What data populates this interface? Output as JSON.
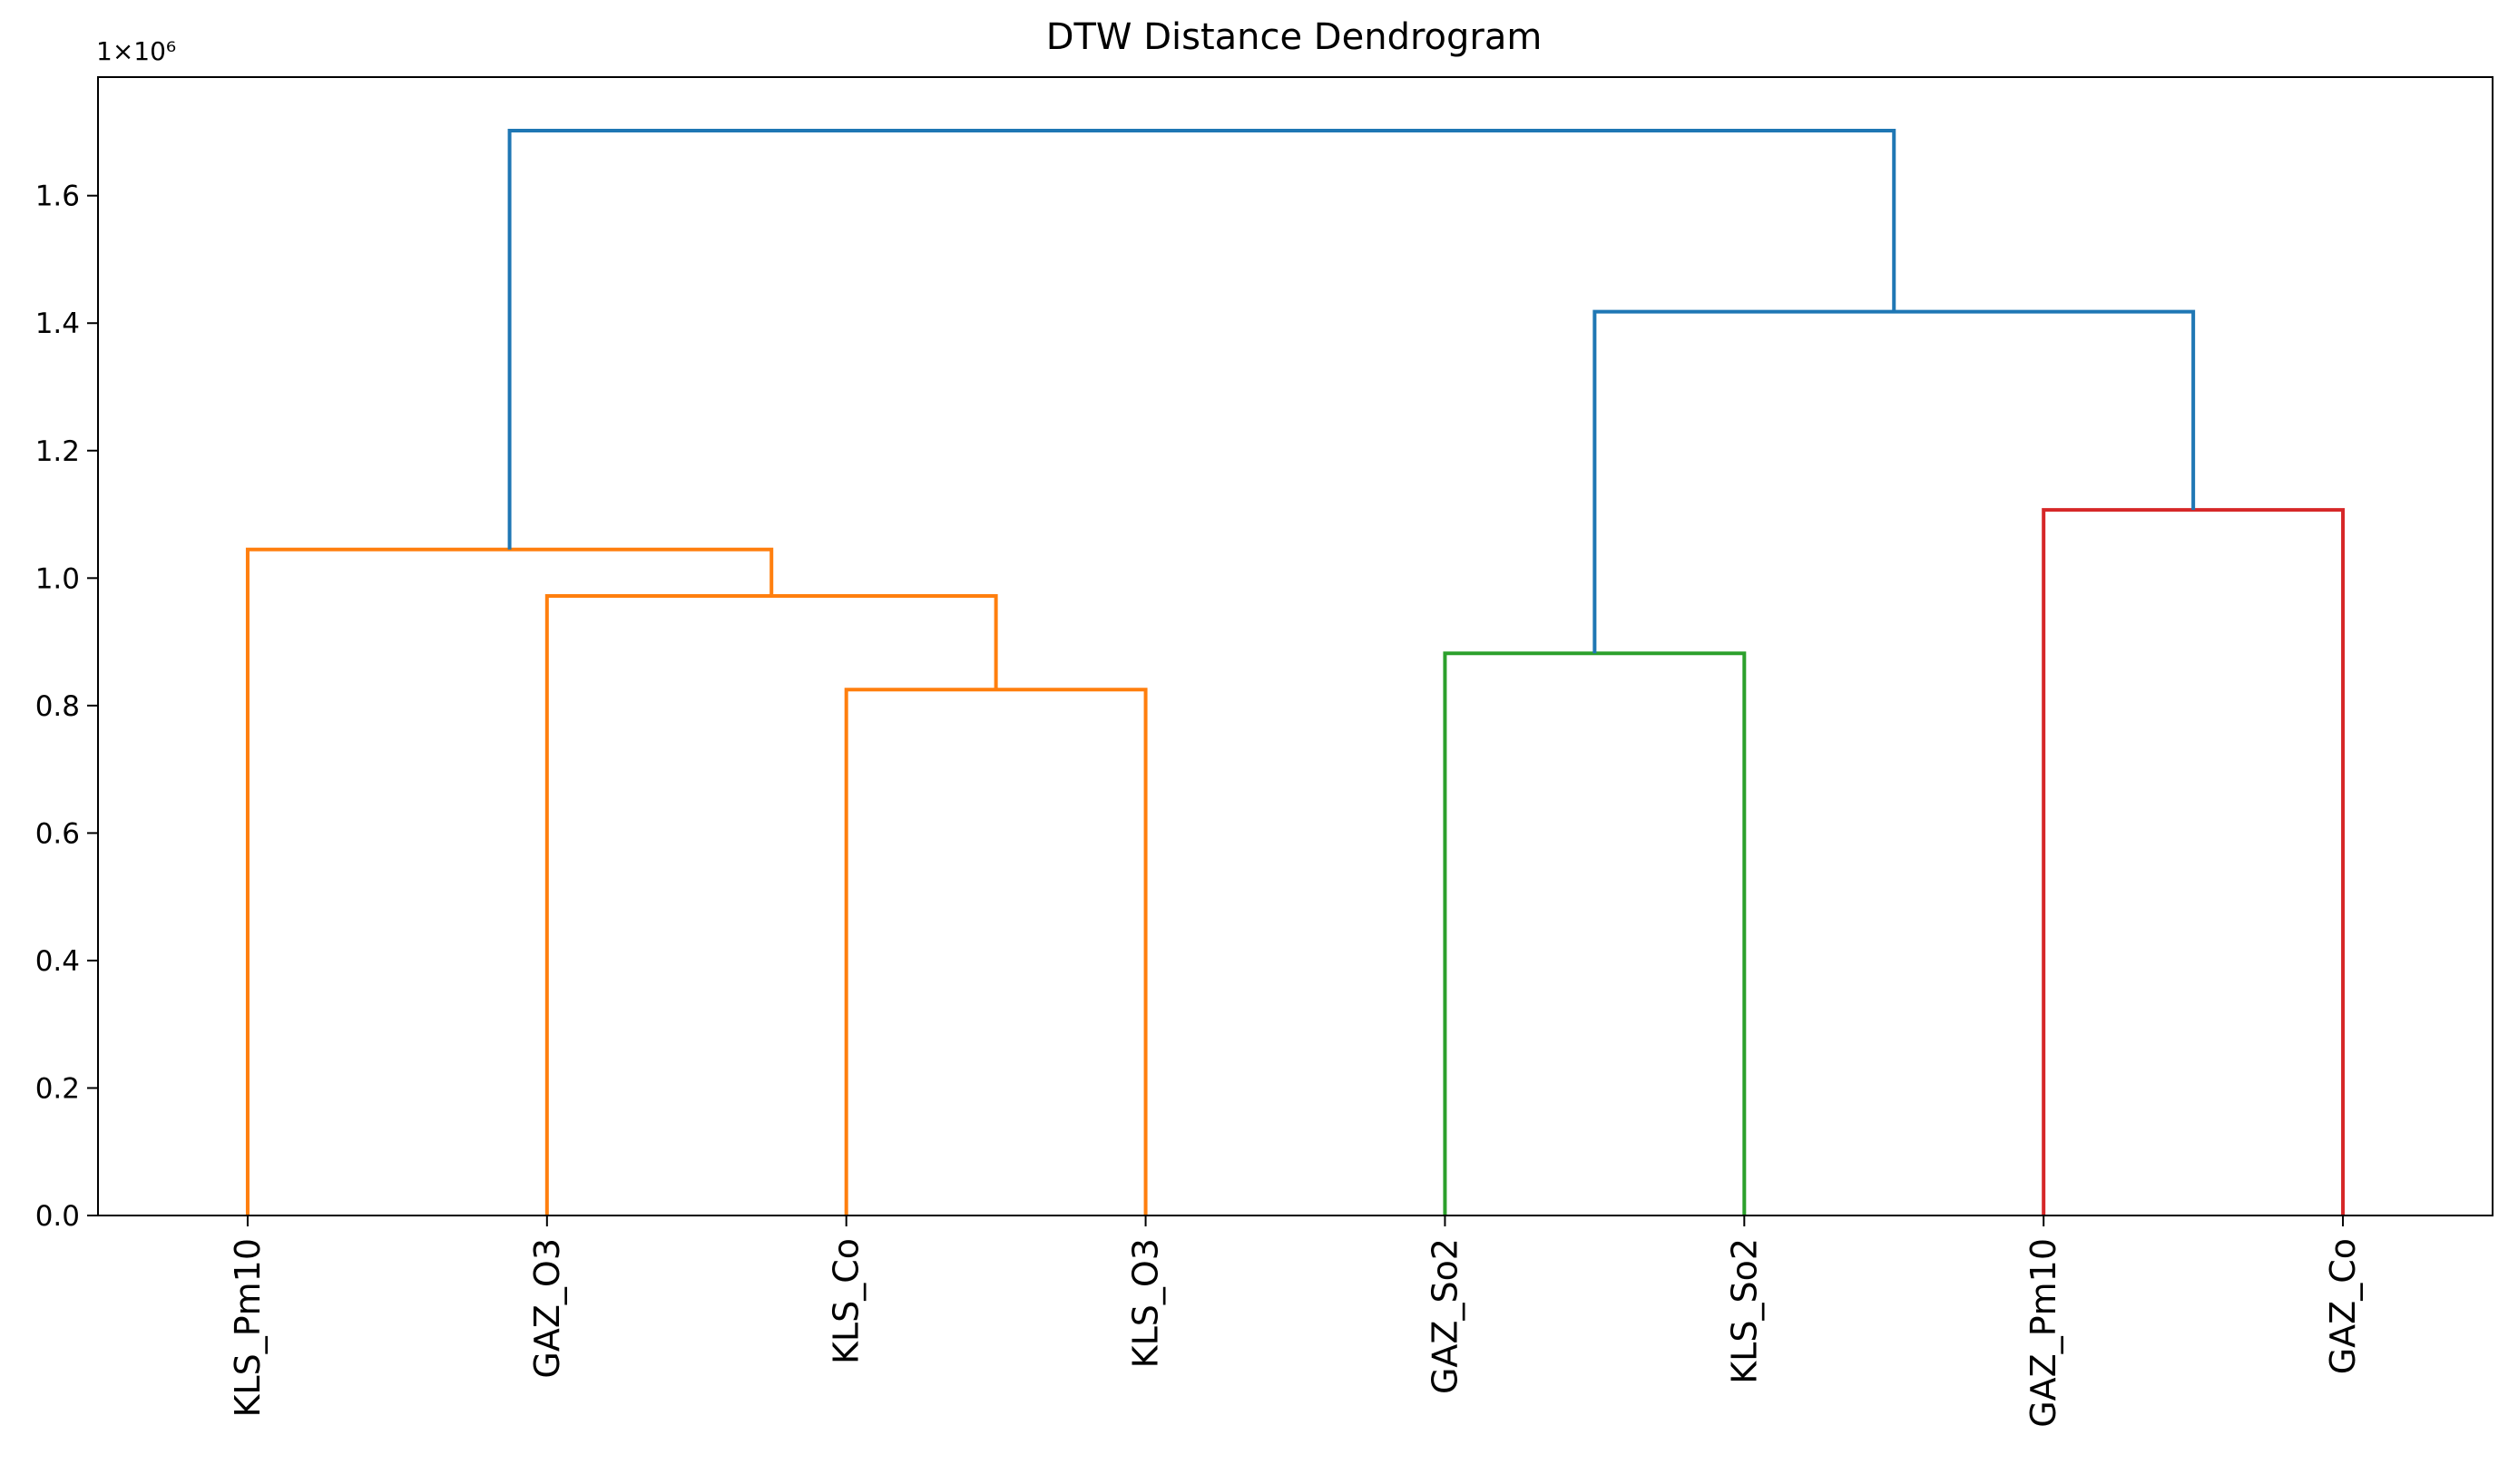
{
  "chart_data": {
    "type": "dendrogram",
    "title": "DTW Distance Dendrogram",
    "y_offset_label": "1×10⁶",
    "categories": [
      "KLS_Pm10",
      "GAZ_O3",
      "KLS_Co",
      "KLS_O3",
      "GAZ_So2",
      "KLS_So2",
      "GAZ_Pm10",
      "GAZ_Co"
    ],
    "links": [
      {
        "children": [
          2,
          3
        ],
        "height": 0.825,
        "color": "#ff7f0e"
      },
      {
        "children": [
          1,
          8
        ],
        "height": 0.972,
        "color": "#ff7f0e"
      },
      {
        "children": [
          0,
          9
        ],
        "height": 1.045,
        "color": "#ff7f0e"
      },
      {
        "children": [
          4,
          5
        ],
        "height": 0.882,
        "color": "#2ca02c"
      },
      {
        "children": [
          6,
          7
        ],
        "height": 1.107,
        "color": "#d62728"
      },
      {
        "children": [
          11,
          12
        ],
        "height": 1.418,
        "color": "#1f77b4"
      },
      {
        "children": [
          10,
          13
        ],
        "height": 1.702,
        "color": "#1f77b4"
      }
    ],
    "ylim": [
      0,
      1.786
    ],
    "yticks": [
      {
        "value": 0,
        "label": "0.0"
      },
      0.2,
      0.4,
      0.6,
      0.8,
      {
        "value": 1,
        "label": "1.0"
      },
      1.2,
      1.4,
      1.6
    ]
  }
}
